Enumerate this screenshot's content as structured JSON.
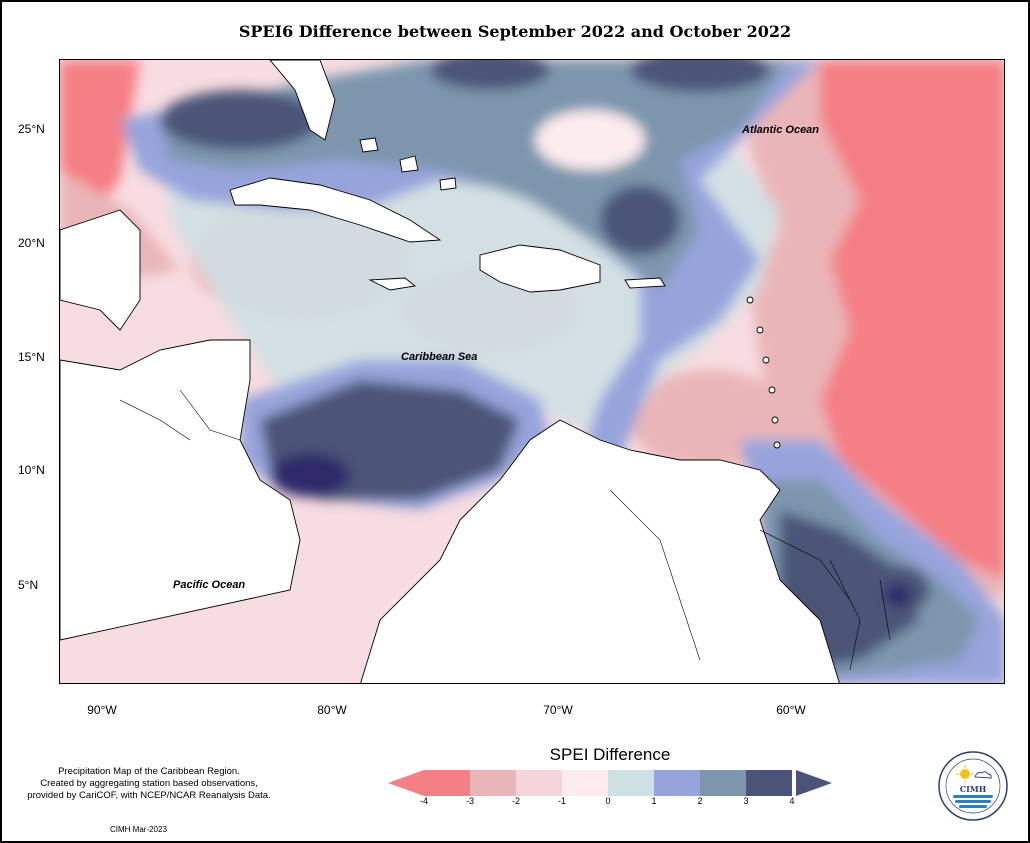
{
  "title": "SPEI6 Difference between September 2022 and October 2022",
  "latitude_labels": [
    "25°N",
    "20°N",
    "15°N",
    "10°N",
    "5°N"
  ],
  "longitude_labels": [
    "90°W",
    "80°W",
    "70°W",
    "60°W"
  ],
  "places": {
    "atlantic": "Atlantic Ocean",
    "caribbean": "Caribbean Sea",
    "pacific": "Pacific Ocean"
  },
  "legend": {
    "title": "SPEI Difference",
    "ticks": [
      "-4",
      "-3",
      "-2",
      "-1",
      "0",
      "1",
      "2",
      "3",
      "4"
    ],
    "colors": [
      "#f47f85",
      "#eab5b8",
      "#f5d4da",
      "#fcecee",
      "#cfe0e4",
      "#97a4dc",
      "#7d96ad",
      "#4b5478"
    ]
  },
  "description_lines": [
    "Precipitation Map of the Caribbean Region.",
    "Created by aggregating station based observations,",
    "provided by CariCOF, with NCEP/NCAR Reanalysis Data."
  ],
  "credit": "CIMH Mar-2023",
  "logo_text": "CIMH"
}
